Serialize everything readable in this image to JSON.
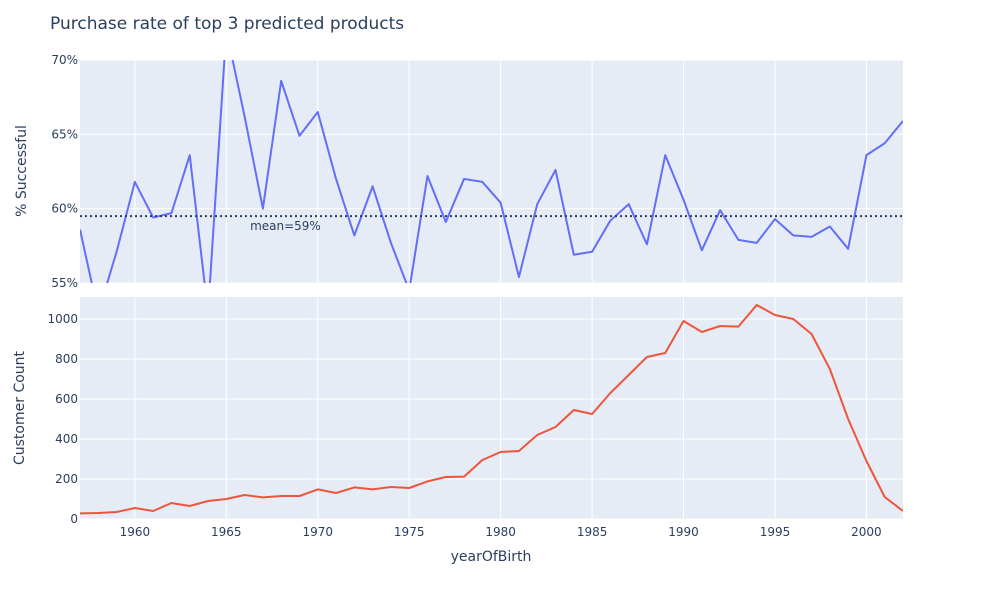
{
  "chart_data": {
    "type": "line",
    "title": "Purchase rate of top 3 predicted products",
    "xlabel": "yearOfBirth",
    "xlim": [
      1957,
      2002
    ],
    "x_ticks": [
      "1960",
      "1965",
      "1970",
      "1975",
      "1980",
      "1985",
      "1990",
      "1995",
      "2000"
    ],
    "x": [
      1957,
      1958,
      1959,
      1960,
      1961,
      1962,
      1963,
      1964,
      1965,
      1966,
      1967,
      1968,
      1969,
      1970,
      1971,
      1972,
      1973,
      1974,
      1975,
      1976,
      1977,
      1978,
      1979,
      1980,
      1981,
      1982,
      1983,
      1984,
      1985,
      1986,
      1987,
      1988,
      1989,
      1990,
      1991,
      1992,
      1993,
      1994,
      1995,
      1996,
      1997,
      1998,
      1999,
      2000,
      2001,
      2002
    ],
    "panels": [
      {
        "ylabel": "% Successful",
        "ylim": [
          0.55,
          0.7
        ],
        "y_ticks": [
          "55%",
          "60%",
          "65%",
          "70%"
        ],
        "y_tick_values": [
          0.55,
          0.6,
          0.65,
          0.7
        ],
        "color": "#636efa",
        "series": [
          {
            "values": [
              0.586,
              0.53,
              0.571,
              0.618,
              0.594,
              0.597,
              0.636,
              0.53,
              0.72,
              0.662,
              0.6,
              0.686,
              0.649,
              0.665,
              0.62,
              0.582,
              0.615,
              0.577,
              0.545,
              0.622,
              0.591,
              0.62,
              0.618,
              0.604,
              0.554,
              0.603,
              0.626,
              0.569,
              0.571,
              0.592,
              0.603,
              0.576,
              0.636,
              0.606,
              0.572,
              0.599,
              0.579,
              0.577,
              0.593,
              0.582,
              0.581,
              0.588,
              0.573,
              0.636,
              0.644,
              0.659
            ]
          }
        ],
        "mean_line": {
          "value": 0.595,
          "label": "mean=59%",
          "color": "#2a3f5f"
        }
      },
      {
        "ylabel": "Customer Count",
        "ylim": [
          0,
          1110
        ],
        "y_ticks": [
          "0",
          "200",
          "400",
          "600",
          "800",
          "1000"
        ],
        "y_tick_values": [
          0,
          200,
          400,
          600,
          800,
          1000
        ],
        "color": "#ef553b",
        "series": [
          {
            "values": [
              28,
              30,
              35,
              55,
              40,
              80,
              65,
              90,
              100,
              120,
              108,
              115,
              115,
              148,
              130,
              158,
              148,
              160,
              155,
              188,
              210,
              212,
              295,
              335,
              340,
              420,
              460,
              545,
              525,
              630,
              720,
              810,
              830,
              990,
              935,
              965,
              962,
              1070,
              1020,
              1000,
              925,
              750,
              500,
              290,
              110,
              40
            ]
          }
        ]
      }
    ]
  }
}
